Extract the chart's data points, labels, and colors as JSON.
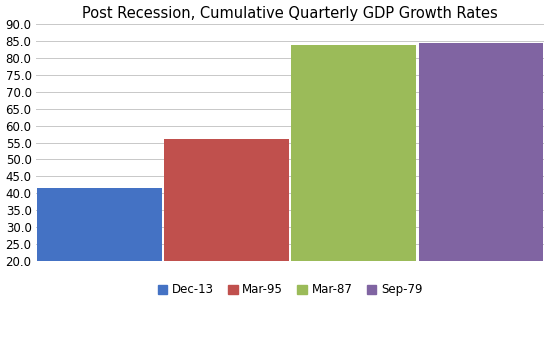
{
  "title": "Post Recession, Cumulative Quarterly GDP Growth Rates",
  "categories": [
    "Dec-13",
    "Mar-95",
    "Mar-87",
    "Sep-79"
  ],
  "values": [
    41.5,
    56.0,
    84.0,
    84.5
  ],
  "bar_colors": [
    "#4472C4",
    "#C0504D",
    "#9BBB59",
    "#8064A2"
  ],
  "ylim": [
    20.0,
    90.0
  ],
  "yticks": [
    20.0,
    25.0,
    30.0,
    35.0,
    40.0,
    45.0,
    50.0,
    55.0,
    60.0,
    65.0,
    70.0,
    75.0,
    80.0,
    85.0,
    90.0
  ],
  "title_fontsize": 10.5,
  "tick_fontsize": 8.5,
  "legend_fontsize": 8.5,
  "background_color": "#FFFFFF",
  "grid_color": "#C8C8C8",
  "bar_width": 0.98
}
